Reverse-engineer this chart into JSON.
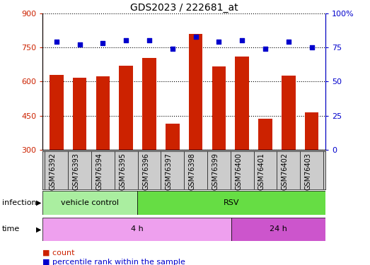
{
  "title": "GDS2023 / 222681_at",
  "samples": [
    "GSM76392",
    "GSM76393",
    "GSM76394",
    "GSM76395",
    "GSM76396",
    "GSM76397",
    "GSM76398",
    "GSM76399",
    "GSM76400",
    "GSM76401",
    "GSM76402",
    "GSM76403"
  ],
  "counts": [
    630,
    615,
    622,
    668,
    703,
    415,
    810,
    665,
    710,
    435,
    625,
    463
  ],
  "percentile_ranks": [
    79,
    77,
    78,
    80,
    80,
    74,
    83,
    79,
    80,
    74,
    79,
    75
  ],
  "ylim_left": [
    300,
    900
  ],
  "ylim_right": [
    0,
    100
  ],
  "yticks_left": [
    300,
    450,
    600,
    750,
    900
  ],
  "yticks_right": [
    0,
    25,
    50,
    75,
    100
  ],
  "bar_color": "#CC2200",
  "dot_color": "#0000CC",
  "infection_groups": [
    {
      "label": "vehicle control",
      "start": 0,
      "end": 4,
      "color": "#AAEEA0"
    },
    {
      "label": "RSV",
      "start": 4,
      "end": 12,
      "color": "#66DD44"
    }
  ],
  "time_groups": [
    {
      "label": "4 h",
      "start": 0,
      "end": 8,
      "color": "#EEA0EE"
    },
    {
      "label": "24 h",
      "start": 8,
      "end": 12,
      "color": "#CC55CC"
    }
  ],
  "tick_area_color": "#CCCCCC",
  "grid_linestyle": "dotted",
  "legend_count_color": "#CC2200",
  "legend_pct_color": "#0000CC"
}
